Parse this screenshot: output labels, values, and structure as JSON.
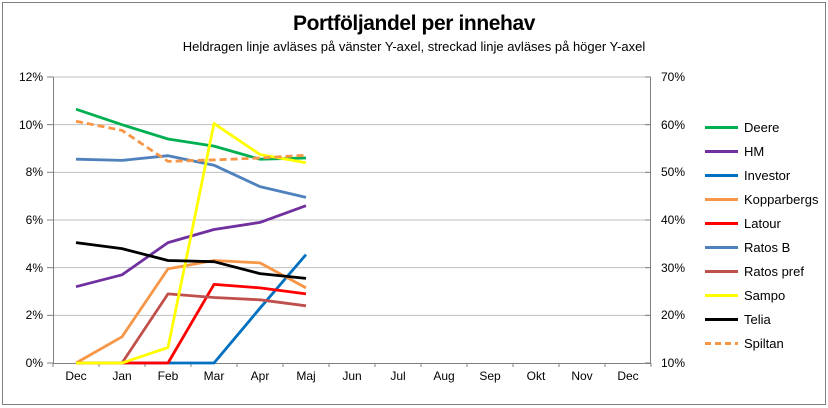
{
  "chart_data": {
    "type": "line",
    "title": "Portföljandel per innehav",
    "subtitle": "Heldragen linje avläses på vänster Y-axel, streckad linje avläses på höger Y-axel",
    "categories": [
      "Dec",
      "Jan",
      "Feb",
      "Mar",
      "Apr",
      "Maj",
      "Jun",
      "Jul",
      "Aug",
      "Sep",
      "Okt",
      "Nov",
      "Dec"
    ],
    "left_axis": {
      "min": 0,
      "max": 12,
      "ticks": [
        "12%",
        "10%",
        "8%",
        "6%",
        "4%",
        "2%",
        "0%"
      ]
    },
    "right_axis": {
      "min": 10,
      "max": 70,
      "ticks": [
        "70%",
        "60%",
        "50%",
        "40%",
        "30%",
        "20%",
        "10%"
      ]
    },
    "grid": "horizontal",
    "legend_position": "right",
    "colors": {
      "gridline": "#bfbfbf",
      "axis": "#808080",
      "text": "#000000",
      "background": "#ffffff",
      "border": "#7f7f7f"
    },
    "series": [
      {
        "name": "Deere",
        "color": "#00b050",
        "axis": "left",
        "style": "solid",
        "values": [
          10.65,
          10.0,
          9.4,
          9.1,
          8.55,
          8.6
        ]
      },
      {
        "name": "HM",
        "color": "#7030a0",
        "axis": "left",
        "style": "solid",
        "values": [
          3.2,
          3.7,
          5.05,
          5.6,
          5.9,
          6.6
        ]
      },
      {
        "name": "Investor",
        "color": "#0070c0",
        "axis": "left",
        "style": "solid",
        "values": [
          0,
          0,
          0,
          0,
          2.3,
          4.55
        ]
      },
      {
        "name": "Kopparbergs",
        "color": "#f79646",
        "axis": "left",
        "style": "solid",
        "values": [
          0,
          1.1,
          3.95,
          4.3,
          4.2,
          3.15
        ]
      },
      {
        "name": "Latour",
        "color": "#ff0000",
        "axis": "left",
        "style": "solid",
        "values": [
          0,
          0,
          0,
          3.3,
          3.15,
          2.9
        ]
      },
      {
        "name": "Ratos B",
        "color": "#4f81bd",
        "axis": "left",
        "style": "solid",
        "values": [
          8.55,
          8.5,
          8.7,
          8.3,
          7.4,
          6.95
        ]
      },
      {
        "name": "Ratos pref",
        "color": "#c0504d",
        "axis": "left",
        "style": "solid",
        "values": [
          0,
          0,
          2.9,
          2.75,
          2.65,
          2.4
        ]
      },
      {
        "name": "Sampo",
        "color": "#ffff00",
        "axis": "left",
        "style": "solid",
        "values": [
          0,
          0,
          0.65,
          10.05,
          8.75,
          8.4
        ]
      },
      {
        "name": "Telia",
        "color": "#000000",
        "axis": "left",
        "style": "solid",
        "values": [
          5.05,
          4.8,
          4.3,
          4.25,
          3.75,
          3.55
        ]
      },
      {
        "name": "Spiltan",
        "color": "#f79646",
        "axis": "right",
        "style": "dashed",
        "values": [
          60.7,
          58.8,
          52.3,
          52.6,
          53.0,
          53.6
        ]
      }
    ]
  }
}
